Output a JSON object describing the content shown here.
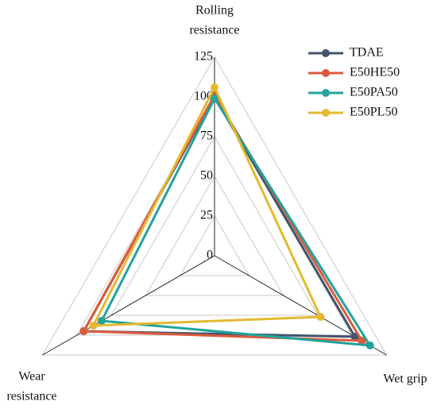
{
  "chart_data": {
    "type": "radar",
    "axes": [
      [
        "Rolling",
        "resistance"
      ],
      [
        "Wet grip"
      ],
      [
        "Wear",
        "resistance"
      ]
    ],
    "rlim": [
      0,
      125
    ],
    "rticks": [
      0,
      25,
      50,
      75,
      100,
      125
    ],
    "grid": true,
    "legend": "upper right",
    "series": [
      {
        "name": "TDAE",
        "color": "#44546a",
        "values": [
          100,
          102,
          95
        ]
      },
      {
        "name": "E50HE50",
        "color": "#db5b3c",
        "values": [
          101,
          107,
          95
        ]
      },
      {
        "name": "E50PA50",
        "color": "#23a39b",
        "values": [
          99,
          113,
          82
        ]
      },
      {
        "name": "E50PL50",
        "color": "#e3b92f",
        "values": [
          106,
          77,
          88
        ]
      }
    ]
  }
}
